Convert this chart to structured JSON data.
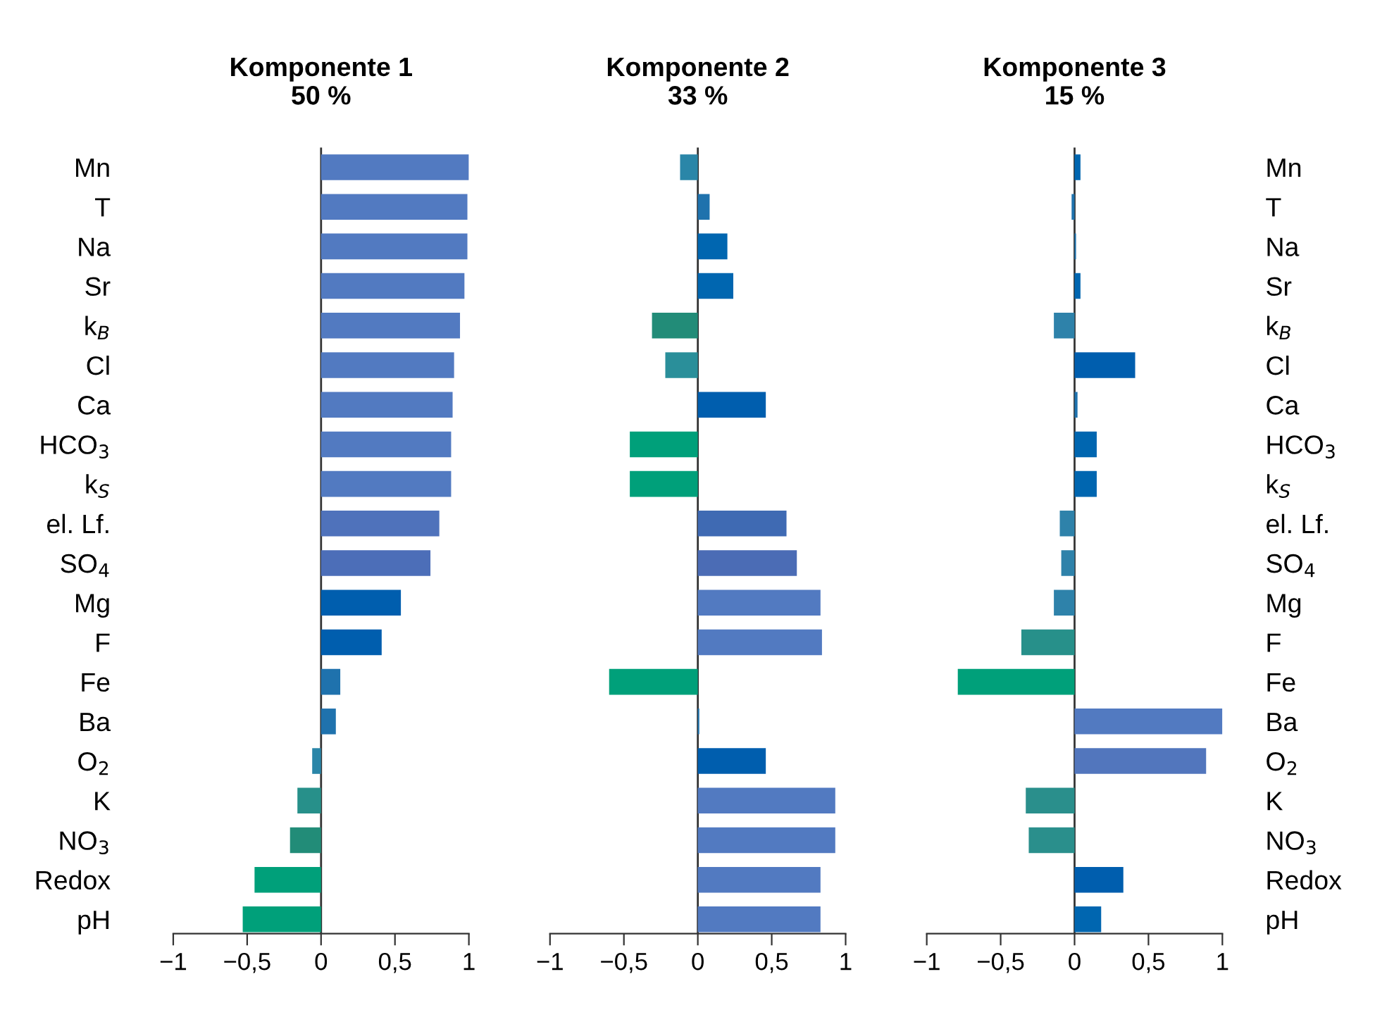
{
  "chart_data": [
    {
      "type": "bar",
      "orientation": "horizontal",
      "title": "Komponente 1\n50 %",
      "categories": [
        "Mn",
        "T",
        "Na",
        "Sr",
        "k$_{B}$",
        "Cl",
        "Ca",
        "HCO$_{3}$",
        "k$_{S}$",
        "el. Lf.",
        "SO$_{4}$",
        "Mg",
        "F",
        "Fe",
        "Ba",
        "O$_{2}$",
        "K",
        "NO$_{3}$",
        "Redox",
        "pH"
      ],
      "values": [
        1.0,
        0.99,
        0.99,
        0.97,
        0.94,
        0.9,
        0.89,
        0.88,
        0.88,
        0.8,
        0.74,
        0.54,
        0.41,
        0.13,
        0.1,
        -0.06,
        -0.16,
        -0.21,
        -0.45,
        -0.53
      ],
      "colors": [
        "#527ac1",
        "#527ac1",
        "#527ac1",
        "#527ac1",
        "#527ac1",
        "#527ac1",
        "#527ac1",
        "#527ac1",
        "#527ac1",
        "#4f72bb",
        "#4c6eb8",
        "#005eae",
        "#005eae",
        "#1f72ad",
        "#1f72ad",
        "#2a86a8",
        "#27908a",
        "#228c78",
        "#00a07a",
        "#00a07a"
      ],
      "xlim": [
        -1,
        1
      ],
      "xticks": [
        {
          "value": -1,
          "label": "−1"
        },
        {
          "value": -0.5,
          "label": "−0,5"
        },
        0,
        {
          "value": 0.5,
          "label": "0,5"
        },
        1
      ]
    },
    {
      "type": "bar",
      "orientation": "horizontal",
      "title": "Komponente 2\n33 %",
      "categories": [
        null,
        null,
        null,
        null,
        null,
        null,
        null,
        null,
        null,
        null,
        null,
        null,
        null,
        null,
        null,
        null,
        null,
        null,
        null,
        null
      ],
      "values": [
        -0.12,
        0.08,
        0.2,
        0.24,
        -0.31,
        -0.22,
        0.46,
        -0.46,
        -0.46,
        0.6,
        0.67,
        0.83,
        0.84,
        -0.6,
        0.01,
        0.46,
        0.93,
        0.93,
        0.83,
        0.83
      ],
      "colors": [
        "#2a86a8",
        "#1f72ad",
        "#0066b0",
        "#0066b0",
        "#228c78",
        "#2a8f9a",
        "#005eae",
        "#00a07a",
        "#00a07a",
        "#3f6ab3",
        "#4b6cb5",
        "#527ac1",
        "#527ac1",
        "#00a07a",
        "#1f72ad",
        "#005eae",
        "#527ac1",
        "#527ac1",
        "#527ac1",
        "#527ac1"
      ],
      "xlim": [
        -1,
        1
      ],
      "xticks": [
        {
          "value": -1,
          "label": "−1"
        },
        {
          "value": -0.5,
          "label": "−0,5"
        },
        0,
        {
          "value": 0.5,
          "label": "0,5"
        },
        1
      ]
    },
    {
      "type": "bar",
      "orientation": "horizontal",
      "title": "Komponente 3\n15 %",
      "categories": [
        "Mn",
        "T",
        "Na",
        "Sr",
        "k$_{B}$",
        "Cl",
        "Ca",
        "HCO$_{3}$",
        "k$_{S}$",
        "el. Lf.",
        "SO$_{4}$",
        "Mg",
        "F",
        "Fe",
        "Ba",
        "O$_{2}$",
        "K",
        "NO$_{3}$",
        "Redox",
        "pH"
      ],
      "values": [
        0.04,
        -0.02,
        0.01,
        0.04,
        -0.14,
        0.41,
        0.02,
        0.15,
        0.15,
        -0.1,
        -0.09,
        -0.14,
        -0.36,
        -0.79,
        1.0,
        0.89,
        -0.33,
        -0.31,
        0.33,
        0.18
      ],
      "colors": [
        "#0066b0",
        "#1f72ad",
        "#1f72ad",
        "#0066b0",
        "#2e82aa",
        "#005eae",
        "#1f72ad",
        "#0066b0",
        "#0066b0",
        "#2e82aa",
        "#2e82aa",
        "#2e82aa",
        "#27908a",
        "#00a07a",
        "#527ac1",
        "#5276bd",
        "#2a8f8c",
        "#2a8f8c",
        "#005eae",
        "#0066b0"
      ],
      "xlim": [
        -1,
        1
      ],
      "xticks": [
        {
          "value": -1,
          "label": "−1"
        },
        {
          "value": -0.5,
          "label": "−0,5"
        },
        0,
        {
          "value": 0.5,
          "label": "0,5"
        },
        1
      ]
    }
  ]
}
